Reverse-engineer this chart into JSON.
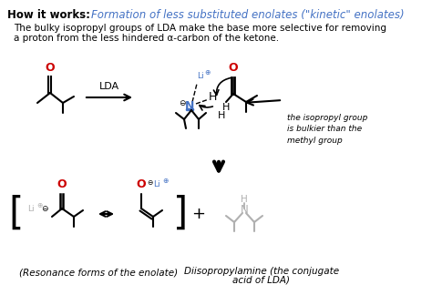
{
  "title_bold": "How it works:",
  "title_italic": "Formation of less substituted enolates (\"kinetic\" enolates)",
  "title_italic_hex": "#4472C4",
  "body_line1": "The bulky isopropyl groups of LDA make the base more selective for removing",
  "body_line2": "a proton from the less hindered α-carbon of the ketone.",
  "lda_label": "LDA",
  "bulkier_text": "the isopropyl group\nis bulkier than the\nmethyl group",
  "resonance_caption": "(Resonance forms of the enolate)",
  "diiso_caption_line1": "Diisopropylamine (the conjugate",
  "diiso_caption_line2": "acid of LDA)",
  "bg_color": "#ffffff",
  "red": "#cc0000",
  "blue": "#4472C4",
  "gray": "#b0b0b0",
  "black": "#000000",
  "figsize": [
    4.74,
    3.24
  ],
  "dpi": 100
}
